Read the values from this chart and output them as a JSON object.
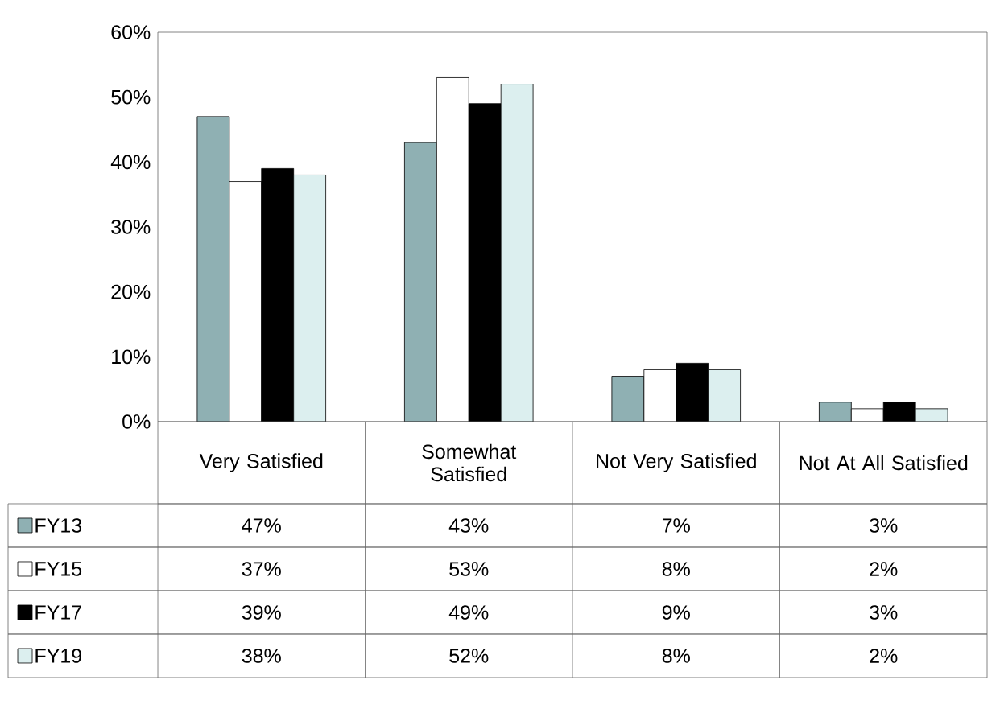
{
  "chart_data": {
    "type": "bar",
    "categories": [
      "Very Satisfied",
      "Somewhat Satisfied",
      "Not Very Satisfied",
      "Not At All Satisfied"
    ],
    "series": [
      {
        "name": "FY13",
        "color": "#8fb0b3",
        "values": [
          47,
          43,
          7,
          3
        ],
        "value_labels": [
          "47%",
          "43%",
          "7%",
          "3%"
        ]
      },
      {
        "name": "FY15",
        "color": "#ffffff",
        "values": [
          37,
          53,
          8,
          2
        ],
        "value_labels": [
          "37%",
          "53%",
          "8%",
          "2%"
        ]
      },
      {
        "name": "FY17",
        "color": "#000000",
        "values": [
          39,
          49,
          9,
          3
        ],
        "value_labels": [
          "39%",
          "49%",
          "9%",
          "3%"
        ]
      },
      {
        "name": "FY19",
        "color": "#dcefef",
        "values": [
          38,
          52,
          8,
          2
        ],
        "value_labels": [
          "38%",
          "52%",
          "8%",
          "2%"
        ]
      }
    ],
    "ylim": [
      0,
      60
    ],
    "yticks": [
      {
        "value": 0,
        "label": "0%"
      },
      {
        "value": 10,
        "label": "10%"
      },
      {
        "value": 20,
        "label": "20%"
      },
      {
        "value": 30,
        "label": "30%"
      },
      {
        "value": 40,
        "label": "40%"
      },
      {
        "value": 50,
        "label": "50%"
      },
      {
        "value": 60,
        "label": "60%"
      }
    ],
    "legend": "bottom left"
  }
}
